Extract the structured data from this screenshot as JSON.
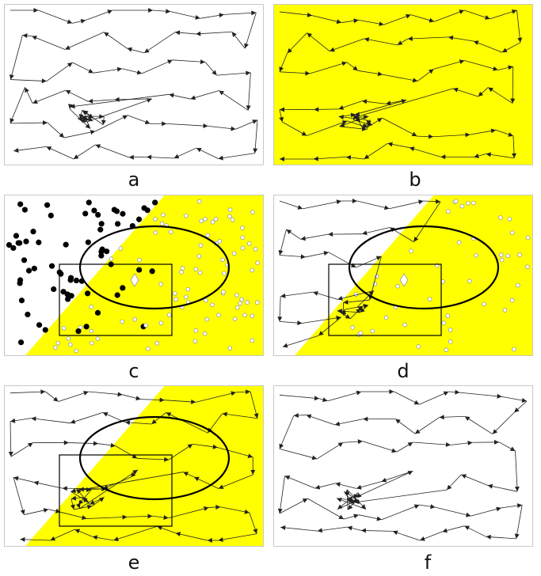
{
  "figure": {
    "colors": {
      "yellow": "#ffff00",
      "frame": "#c8c8c8",
      "stroke": "#000000",
      "arrow": "#222222",
      "open_dot_fill": "#ffffff",
      "open_dot_stroke": "#999999"
    },
    "panels": [
      {
        "id": "a",
        "label": "a",
        "background": "white",
        "content": "tour"
      },
      {
        "id": "b",
        "label": "b",
        "background": "yellow",
        "content": "tour"
      },
      {
        "id": "c",
        "label": "c",
        "background": "split",
        "content": "points"
      },
      {
        "id": "d",
        "label": "d",
        "background": "split",
        "content": "tour-partial"
      },
      {
        "id": "e",
        "label": "e",
        "background": "split",
        "content": "tour"
      },
      {
        "id": "f",
        "label": "f",
        "background": "white",
        "content": "tour"
      }
    ]
  }
}
